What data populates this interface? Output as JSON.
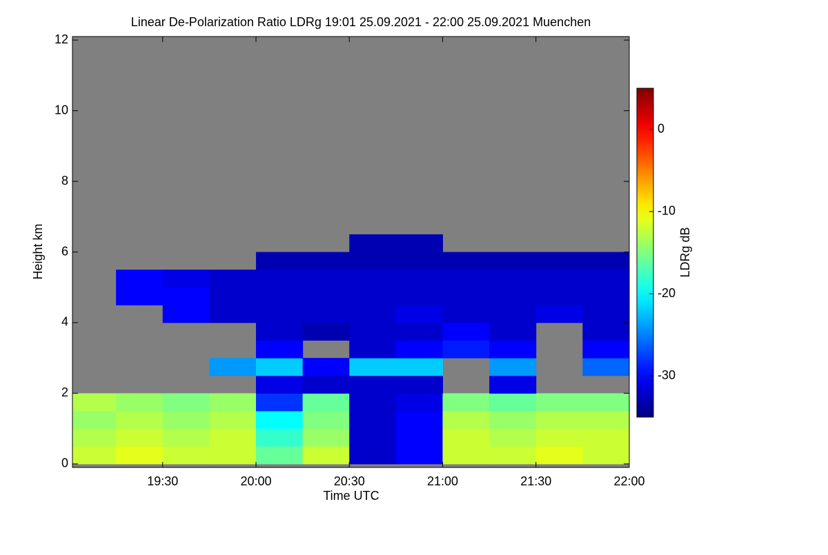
{
  "chart_data": {
    "type": "heatmap",
    "title": "Linear De-Polarization Ratio LDRg   19:01 25.09.2021 - 22:00 25.09.2021 Muenchen",
    "x_label": "Time UTC",
    "y_label": "Height km",
    "colorbar_label": "LDRg dB",
    "colormap": "jet",
    "background": "#808080",
    "xlim": [
      19.0167,
      22.0
    ],
    "xticks": [
      {
        "value": 19.5,
        "label": "19:30"
      },
      {
        "value": 20.0,
        "label": "20:00"
      },
      {
        "value": 20.5,
        "label": "20:30"
      },
      {
        "value": 21.0,
        "label": "21:00"
      },
      {
        "value": 21.5,
        "label": "21:30"
      },
      {
        "value": 22.0,
        "label": "22:00"
      }
    ],
    "ylim": [
      -0.1,
      12.1
    ],
    "yticks": [
      0,
      2,
      4,
      6,
      8,
      10,
      12
    ],
    "zlim": [
      -35,
      5
    ],
    "zticks": [
      0,
      -10,
      -20,
      -30
    ],
    "x_edges": [
      19.0167,
      19.25,
      19.5,
      19.75,
      20.0,
      20.25,
      20.5,
      20.75,
      21.0,
      21.25,
      21.5,
      21.75,
      22.0
    ],
    "y_edges": [
      0,
      0.5,
      1,
      1.5,
      2,
      2.5,
      3,
      3.5,
      4,
      4.5,
      5,
      5.5,
      6,
      6.5
    ],
    "z": [
      [
        -12,
        -11,
        -12,
        -12,
        -16,
        -12,
        -32,
        -30,
        -12,
        -12,
        -11,
        -12
      ],
      [
        -13,
        -12,
        -13,
        -12,
        -18,
        -14,
        -32,
        -30,
        -12,
        -13,
        -12,
        -12
      ],
      [
        -14,
        -13,
        -14,
        -13,
        -20,
        -15,
        -32,
        -30,
        -13,
        -14,
        -13,
        -13
      ],
      [
        -13,
        -14,
        -15,
        -14,
        -28,
        -16,
        -32,
        -31,
        -15,
        -16,
        -15,
        -15
      ],
      [
        null,
        null,
        null,
        null,
        -31,
        -32,
        -32,
        -32,
        null,
        -31,
        null,
        null
      ],
      [
        null,
        null,
        null,
        -24,
        -22,
        -30,
        -22,
        -22,
        null,
        -24,
        null,
        -26
      ],
      [
        null,
        null,
        null,
        null,
        -30,
        null,
        -32,
        -30,
        -29,
        -30,
        null,
        -30
      ],
      [
        null,
        null,
        null,
        null,
        -32,
        -33,
        -32,
        -32,
        -30,
        -32,
        null,
        -32
      ],
      [
        null,
        null,
        -30,
        -32,
        -32,
        -32,
        -32,
        -31,
        -32,
        -32,
        -31,
        -32
      ],
      [
        null,
        -30,
        -30,
        -32,
        -32,
        -32,
        -32,
        -32,
        -32,
        -32,
        -32,
        -32
      ],
      [
        null,
        -30,
        -31,
        -32,
        -32,
        -32,
        -32,
        -32,
        -32,
        -32,
        -32,
        -32
      ],
      [
        null,
        null,
        null,
        null,
        -33,
        -33,
        -33,
        -33,
        -33,
        -33,
        -33,
        -33
      ],
      [
        null,
        null,
        null,
        null,
        null,
        null,
        -33,
        -33,
        null,
        null,
        null,
        null
      ]
    ]
  }
}
